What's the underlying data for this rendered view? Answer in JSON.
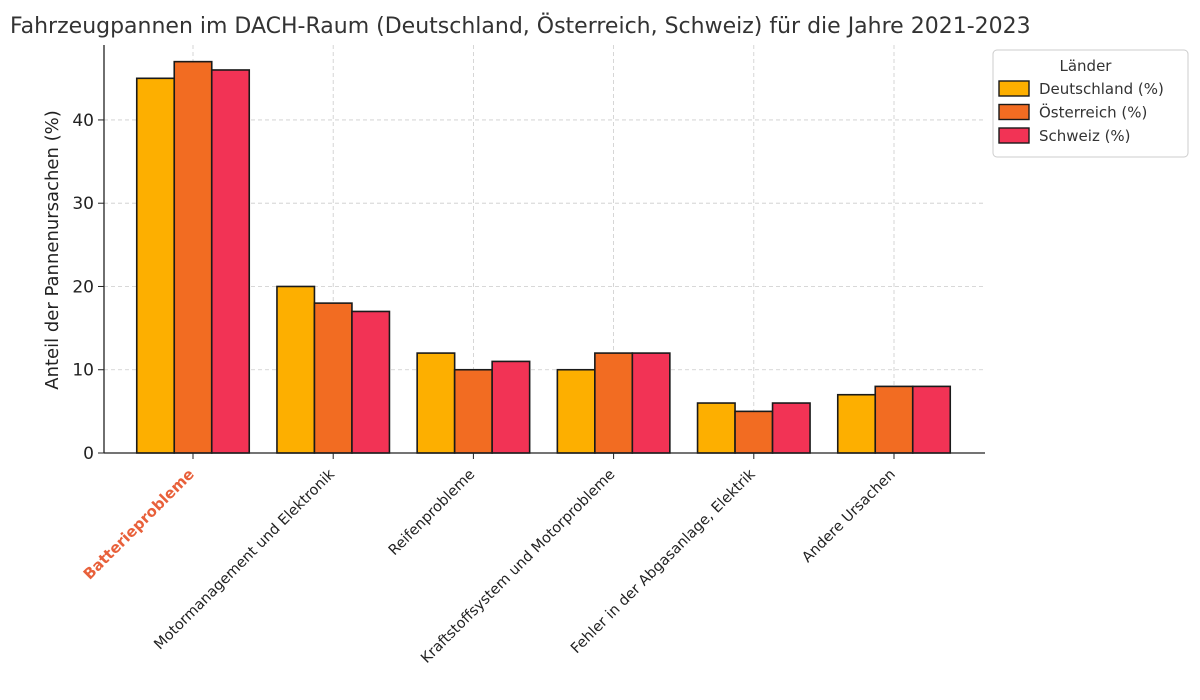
{
  "chart_data": {
    "type": "bar",
    "title": "Fahrzeugpannen im DACH-Raum (Deutschland, Österreich, Schweiz) für die Jahre 2021-2023",
    "xlabel": "",
    "ylabel": "Anteil der Pannenursachen (%)",
    "ylim": [
      0,
      49
    ],
    "yticks": [
      0,
      10,
      20,
      30,
      40
    ],
    "grid": true,
    "categories": [
      "Batterieprobleme",
      "Motormanagement und Elektronik",
      "Reifenprobleme",
      "Kraftstoffsystem und Motorprobleme",
      "Fehler in der Abgasanlage, Elektrik",
      "Andere Ursachen"
    ],
    "highlighted_category": "Batterieprobleme",
    "highlight_color": "#e8603a",
    "legend": {
      "title": "Länder",
      "placement": "outside-top-right"
    },
    "series": [
      {
        "name": "Deutschland (%)",
        "color": "#fdaf00",
        "values": [
          45,
          20,
          12,
          10,
          6,
          7
        ]
      },
      {
        "name": "Österreich (%)",
        "color": "#f26c22",
        "values": [
          47,
          18,
          10,
          12,
          5,
          8
        ]
      },
      {
        "name": "Schweiz (%)",
        "color": "#f23355",
        "values": [
          46,
          17,
          11,
          12,
          6,
          8
        ]
      }
    ]
  }
}
